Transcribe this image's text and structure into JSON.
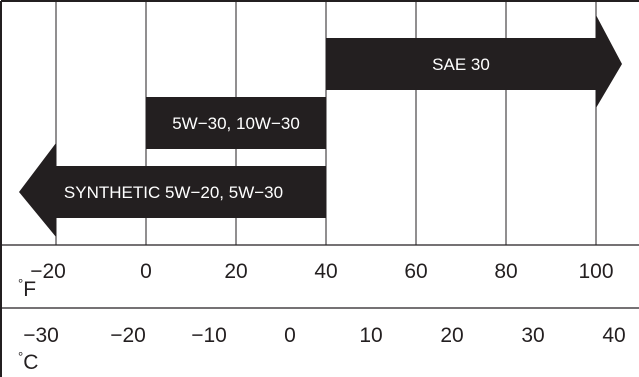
{
  "chart_data": {
    "type": "range-bar",
    "series": [
      {
        "label": "SAE 30",
        "range_f": [
          40,
          100
        ],
        "open_end": "right"
      },
      {
        "label": "5W−30, 10W−30",
        "range_f": [
          0,
          40
        ],
        "open_end": "none"
      },
      {
        "label": "SYNTHETIC 5W−20, 5W−30",
        "range_f": [
          -20,
          40
        ],
        "open_end": "left"
      }
    ],
    "axes": {
      "fahrenheit": {
        "unit": "°F",
        "ticks": [
          -20,
          0,
          20,
          40,
          60,
          80,
          100
        ],
        "tick_labels": [
          "−20",
          "0",
          "20",
          "40",
          "60",
          "80",
          "100"
        ]
      },
      "celsius": {
        "unit": "°C",
        "ticks": [
          -30,
          -20,
          -10,
          0,
          10,
          20,
          30,
          40
        ],
        "tick_labels": [
          "−30",
          "−20",
          "−10",
          "0",
          "10",
          "20",
          "30",
          "40"
        ]
      }
    },
    "grid": true,
    "colors": {
      "bar": "#231f20",
      "bar_text": "#ffffff",
      "line": "#231f20",
      "text": "#231f20"
    }
  }
}
